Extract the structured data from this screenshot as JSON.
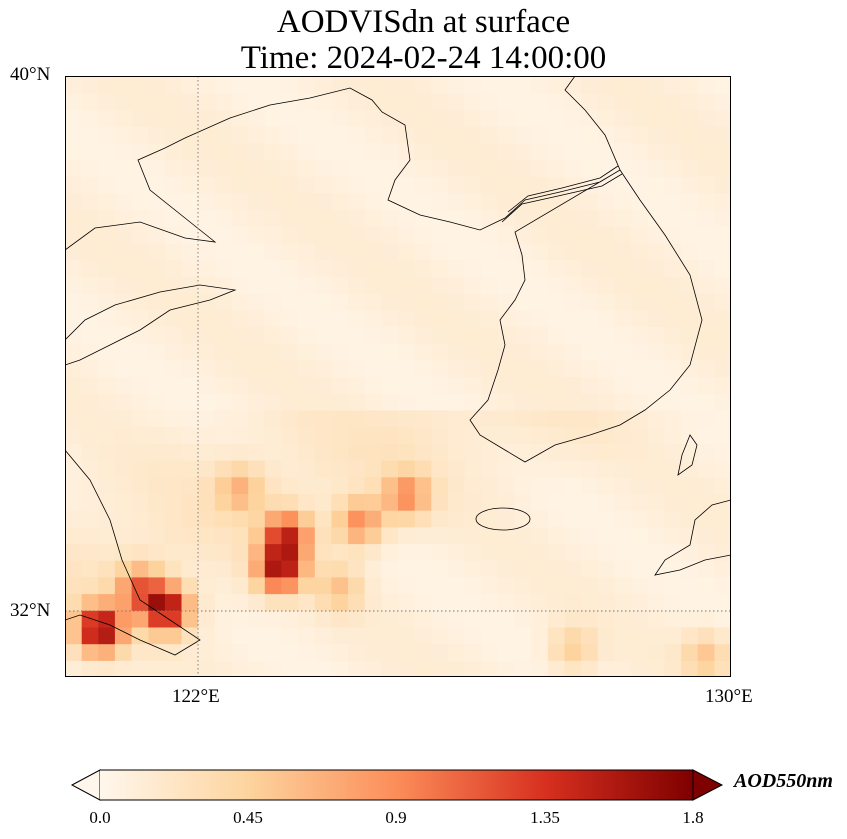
{
  "title": {
    "line1": "AODVISdn at surface",
    "line2": "Time: 2024-02-24 14:00:00"
  },
  "axes": {
    "lat_ticks": [
      "40°N",
      "32°N"
    ],
    "lon_ticks": [
      "122°E",
      "130°E"
    ],
    "extent": {
      "lon": [
        120,
        130
      ],
      "lat": [
        31,
        40
      ]
    }
  },
  "colorbar": {
    "label": "AOD550nm",
    "ticks": [
      "0.0",
      "0.45",
      "0.9",
      "1.35",
      "1.8"
    ],
    "range": [
      0,
      1.8
    ],
    "colormap": "OrRd",
    "extend": "both"
  },
  "chart_data": {
    "type": "heatmap",
    "variable": "AOD550nm",
    "background_aod": 0.12,
    "plume_hotspots": [
      {
        "lon": 120.4,
        "lat": 31.6,
        "aod": 1.7
      },
      {
        "lon": 121.4,
        "lat": 31.9,
        "aod": 1.6
      },
      {
        "lon": 121.0,
        "lat": 32.2,
        "aod": 1.0
      },
      {
        "lon": 123.1,
        "lat": 32.5,
        "aod": 1.5
      },
      {
        "lon": 123.2,
        "lat": 33.0,
        "aod": 1.3
      },
      {
        "lon": 124.3,
        "lat": 33.2,
        "aod": 0.9
      },
      {
        "lon": 125.0,
        "lat": 33.6,
        "aod": 0.85
      },
      {
        "lon": 122.5,
        "lat": 33.7,
        "aod": 0.6
      },
      {
        "lon": 124.0,
        "lat": 32.2,
        "aod": 0.55
      },
      {
        "lon": 127.5,
        "lat": 31.3,
        "aod": 0.5
      },
      {
        "lon": 129.5,
        "lat": 31.2,
        "aod": 0.55
      }
    ]
  }
}
